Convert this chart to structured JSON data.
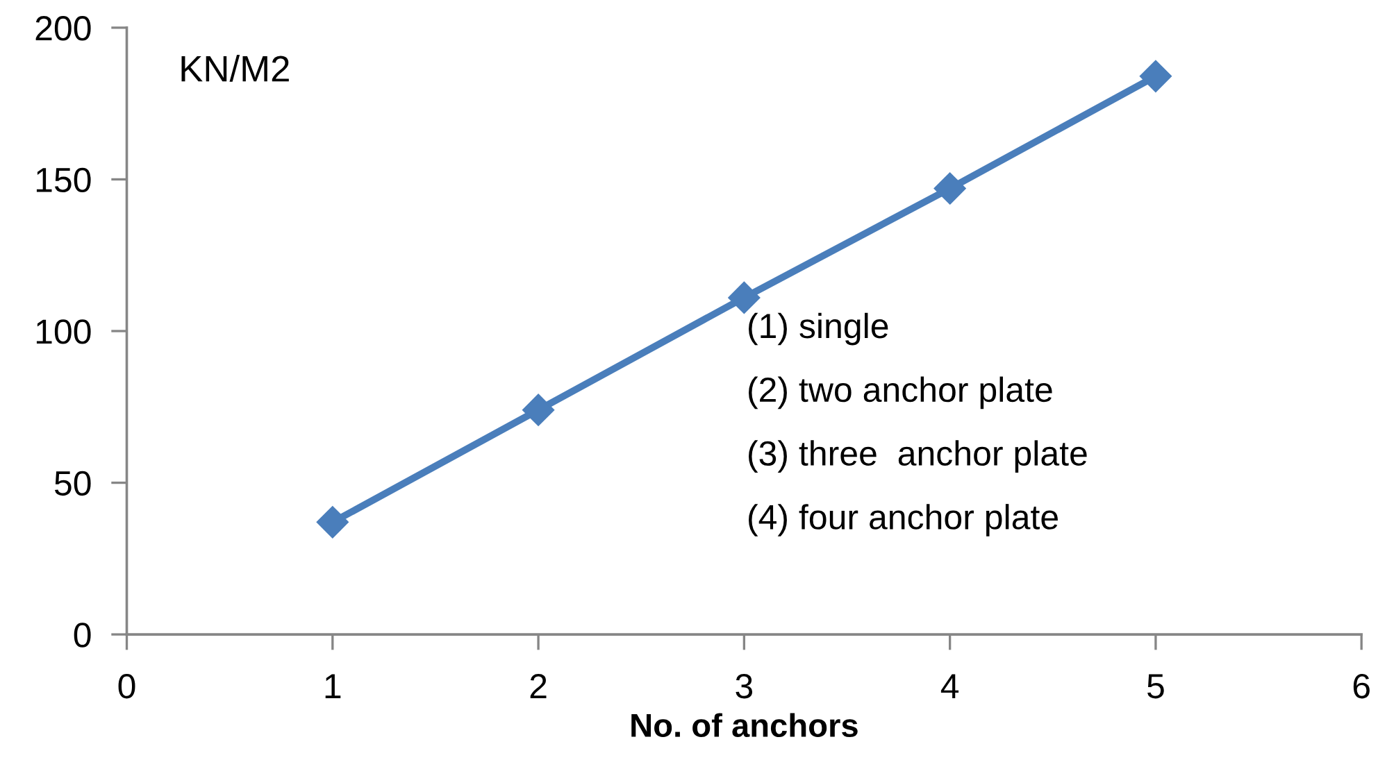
{
  "chart_data": {
    "type": "line",
    "xlabel": "No. of anchors",
    "ylabel": "KN/M2",
    "annotations": [
      "(1) single",
      "(2) two anchor plate",
      "(3) three  anchor plate",
      "(4) four anchor plate"
    ],
    "x": [
      1,
      2,
      3,
      4,
      5
    ],
    "series": [
      {
        "color": "#4a7ebb",
        "values": [
          37,
          74,
          111,
          147,
          184
        ]
      }
    ],
    "xlim": [
      0,
      6
    ],
    "ylim": [
      0,
      200
    ],
    "xticks": [
      0,
      1,
      2,
      3,
      4,
      5,
      6
    ],
    "yticks": [
      0,
      50,
      100,
      150,
      200
    ],
    "marker": "diamond",
    "line_style": "solid"
  }
}
